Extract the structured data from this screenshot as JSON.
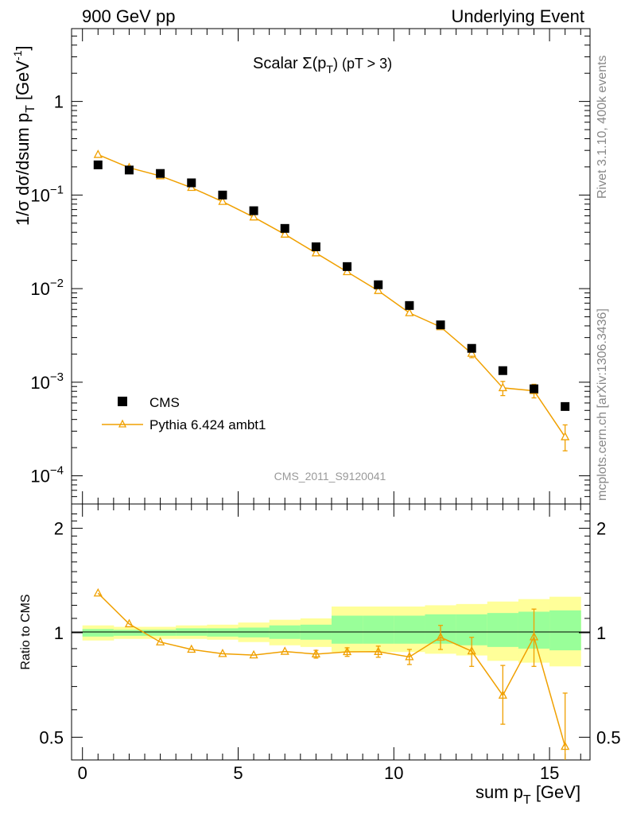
{
  "header": {
    "left": "900 GeV pp",
    "right": "Underlying Event"
  },
  "side_text": {
    "top": "Rivet 3.1.10,  400k events",
    "bottom": "mcplots.cern.ch [arXiv:1306.3436]"
  },
  "watermark": "CMS_2011_S9120041",
  "colors": {
    "mc": "#f0a000",
    "band_outer": "#ffff99",
    "band_inner": "#99ff99",
    "data": "#000000"
  },
  "chart_data": [
    {
      "type": "scatter",
      "title": "Scalar Σ(p_T) (pT > 3)",
      "title_main": "Scalar Σ(p",
      "title_sub": "T",
      "title_end": ") (pT >  3)",
      "ylabel_main": "1/σ dσ/dsum p",
      "ylabel_sub": "T",
      "ylabel_unit": "[GeV",
      "ylabel_sup": "-1",
      "ylabel_close": "]",
      "yscale": "log",
      "ylim": [
        5e-05,
        6
      ],
      "xlim": [
        -0.35,
        16.3
      ],
      "yticks": [
        {
          "v": 1,
          "m": "1",
          "e": ""
        },
        {
          "v": 0.1,
          "m": "10",
          "e": "−1"
        },
        {
          "v": 0.01,
          "m": "10",
          "e": "−2"
        },
        {
          "v": 0.001,
          "m": "10",
          "e": "−3"
        },
        {
          "v": 0.0001,
          "m": "10",
          "e": "−4"
        }
      ],
      "legend_position": "bottom-left",
      "series": [
        {
          "name": "CMS",
          "marker": "filled-square",
          "x": [
            0.5,
            1.5,
            2.5,
            3.5,
            4.5,
            5.5,
            6.5,
            7.5,
            8.5,
            9.5,
            10.5,
            11.5,
            12.5,
            13.5,
            14.5,
            15.5
          ],
          "y": [
            0.21,
            0.185,
            0.17,
            0.135,
            0.1,
            0.068,
            0.044,
            0.028,
            0.0172,
            0.011,
            0.0066,
            0.0041,
            0.0023,
            0.00133,
            0.00085,
            0.00055
          ]
        },
        {
          "name": "Pythia 6.424 ambt1",
          "marker": "open-triangle",
          "x": [
            0.5,
            1.5,
            2.5,
            3.5,
            4.5,
            5.5,
            6.5,
            7.5,
            8.5,
            9.5,
            10.5,
            11.5,
            12.5,
            13.5,
            14.5,
            15.5
          ],
          "y": [
            0.27,
            0.196,
            0.16,
            0.12,
            0.085,
            0.058,
            0.038,
            0.024,
            0.0151,
            0.0095,
            0.0055,
            0.0039,
            0.00203,
            0.00087,
            0.00081,
            0.00026
          ],
          "err_lo": [
            0.262,
            0.19,
            0.155,
            0.116,
            0.082,
            0.056,
            0.0365,
            0.0228,
            0.0142,
            0.0089,
            0.0051,
            0.0036,
            0.00183,
            0.00072,
            0.00068,
            0.000185
          ],
          "err_hi": [
            0.278,
            0.202,
            0.165,
            0.124,
            0.088,
            0.06,
            0.0395,
            0.0252,
            0.016,
            0.0101,
            0.0059,
            0.0042,
            0.00223,
            0.00102,
            0.00095,
            0.00035
          ]
        }
      ]
    },
    {
      "type": "scatter",
      "ylabel": "Ratio to CMS",
      "xlabel_main": "sum p",
      "xlabel_sub": "T",
      "xlabel_unit": " [GeV]",
      "yscale": "log",
      "ylim": [
        0.43,
        2.35
      ],
      "xlim": [
        -0.35,
        16.3
      ],
      "xticks": [
        0,
        5,
        10,
        15
      ],
      "yticks": [
        {
          "v": 0.5,
          "label": "0.5"
        },
        {
          "v": 1,
          "label": "1"
        },
        {
          "v": 2,
          "label": "2"
        }
      ],
      "bands": {
        "edges": [
          0,
          1,
          2,
          3,
          4,
          5,
          6,
          7,
          8,
          9,
          10,
          11,
          12,
          13,
          14,
          15,
          16
        ],
        "outer_lo": [
          0.95,
          0.96,
          0.96,
          0.96,
          0.955,
          0.94,
          0.92,
          0.91,
          0.88,
          0.88,
          0.88,
          0.87,
          0.86,
          0.83,
          0.82,
          0.8
        ],
        "outer_hi": [
          1.05,
          1.04,
          1.04,
          1.05,
          1.055,
          1.07,
          1.09,
          1.1,
          1.19,
          1.19,
          1.19,
          1.2,
          1.21,
          1.23,
          1.25,
          1.27
        ],
        "inner_lo": [
          0.975,
          0.98,
          0.98,
          0.98,
          0.975,
          0.97,
          0.96,
          0.955,
          0.93,
          0.93,
          0.93,
          0.93,
          0.92,
          0.91,
          0.9,
          0.89
        ],
        "inner_hi": [
          1.025,
          1.02,
          1.02,
          1.03,
          1.03,
          1.035,
          1.05,
          1.055,
          1.12,
          1.12,
          1.12,
          1.13,
          1.13,
          1.14,
          1.15,
          1.16
        ]
      },
      "series": [
        {
          "name": "Pythia 6.424 ambt1",
          "x": [
            0.5,
            1.5,
            2.5,
            3.5,
            4.5,
            5.5,
            6.5,
            7.5,
            8.5,
            9.5,
            10.5,
            11.5,
            12.5,
            13.5,
            14.5,
            15.5
          ],
          "y": [
            1.3,
            1.06,
            0.94,
            0.895,
            0.87,
            0.862,
            0.883,
            0.868,
            0.881,
            0.882,
            0.852,
            0.97,
            0.885,
            0.66,
            0.972,
            0.47
          ],
          "err_lo": [
            1.285,
            1.05,
            0.93,
            0.885,
            0.86,
            0.85,
            0.865,
            0.845,
            0.855,
            0.85,
            0.81,
            0.895,
            0.8,
            0.545,
            0.8,
            0.34
          ],
          "err_hi": [
            1.315,
            1.07,
            0.95,
            0.905,
            0.88,
            0.874,
            0.9,
            0.89,
            0.905,
            0.915,
            0.895,
            1.05,
            0.97,
            0.805,
            1.17,
            0.67
          ]
        }
      ]
    }
  ]
}
